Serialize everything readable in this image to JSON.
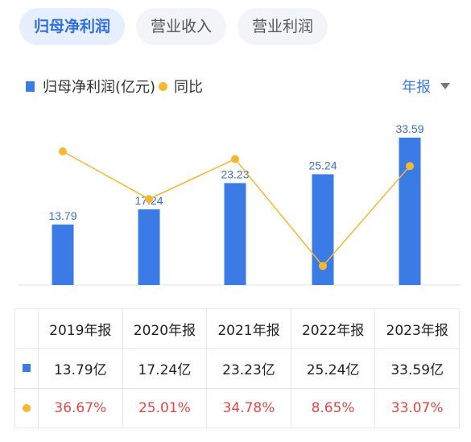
{
  "tabs": [
    {
      "label": "归母净利润",
      "active": true
    },
    {
      "label": "营业收入",
      "active": false
    },
    {
      "label": "营业利润",
      "active": false
    }
  ],
  "legend": {
    "bar_label": "归母净利润(亿元)",
    "line_label": "同比"
  },
  "period_selector": "年报",
  "colors": {
    "bar": "#3b7be6",
    "line": "#f5b82e",
    "label": "#3a6fc9",
    "negative_text": "#e04848",
    "active_tab": "#2f6fdf"
  },
  "chart_data": {
    "type": "bar",
    "categories": [
      "2019年报",
      "2020年报",
      "2021年报",
      "2022年报",
      "2023年报"
    ],
    "series": [
      {
        "name": "归母净利润(亿元)",
        "values": [
          13.79,
          17.24,
          23.23,
          25.24,
          33.59
        ],
        "type": "bar"
      },
      {
        "name": "同比",
        "values": [
          36.67,
          25.01,
          34.78,
          8.65,
          33.07
        ],
        "type": "line",
        "unit": "%"
      }
    ],
    "bar_labels": [
      "13.79",
      "17.24",
      "23.23",
      "25.24",
      "33.59"
    ]
  },
  "table": {
    "headers": [
      "2019年报",
      "2020年报",
      "2021年报",
      "2022年报",
      "2023年报"
    ],
    "profit_row": [
      "13.79亿",
      "17.24亿",
      "23.23亿",
      "25.24亿",
      "33.59亿"
    ],
    "yoy_row": [
      "36.67%",
      "25.01%",
      "34.78%",
      "8.65%",
      "33.07%"
    ]
  }
}
